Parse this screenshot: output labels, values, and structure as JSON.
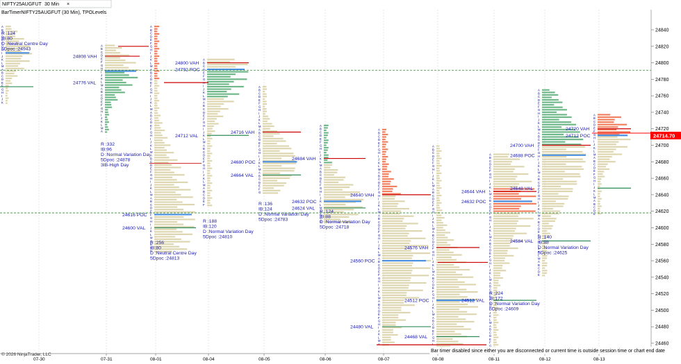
{
  "window": {
    "tab_instrument": "NIFTY25AUGFUT",
    "tab_interval": "30 Min",
    "header_line": "BarTimerNIFTY25AUGFUT (30 Min), TPOLevels",
    "copyright": "© 2026 NinjaTrader, LLC",
    "status_message": "Bar timer disabled since either you are disconnected or current time is outside session time or chart end date"
  },
  "price_axis": {
    "labels": [
      "24840",
      "24820",
      "24800",
      "24780",
      "24760",
      "24740",
      "24720",
      "24700",
      "24680",
      "24660",
      "24640",
      "24620",
      "24600",
      "24580",
      "24560",
      "24540",
      "24520",
      "24500",
      "24480",
      "24460"
    ],
    "current_price": "24714.70",
    "current_price_color": "#ff0000"
  },
  "time_axis": {
    "labels": [
      "07-30",
      "07-31",
      "08-01",
      "08-04",
      "08-05",
      "08-06",
      "08-07",
      "08-08",
      "08-11",
      "08-12",
      "08-13"
    ]
  },
  "colors": {
    "value_area_tan": "#ddd6b0",
    "poc_blue": "#4a90e2",
    "val_green": "#2e8b57",
    "vah_red": "#cc0000",
    "ib_salmon": "#f08060",
    "ib_green": "#6fb88a",
    "text_blue": "#1a1aaa",
    "prev_poc_dash": "#2e8b2e"
  },
  "chart_data": {
    "type": "market_profile",
    "ylim": [
      24450,
      24850
    ],
    "sessions": [
      {
        "date": "07-30",
        "poc": 24812,
        "vah": null,
        "val": null,
        "info": [
          "R :124",
          "IB:80",
          "D :Neutral Centre Day",
          "5Dpoc :24943"
        ]
      },
      {
        "date": "07-31",
        "poc": null,
        "vah": 24808,
        "val": null,
        "info": [
          "R :332",
          "IB:96",
          "D :Normal Variation Day",
          "5Dpoc :24878",
          "3IB-High Day"
        ],
        "labels": [
          "24808 VAH",
          "24776 VAL"
        ]
      },
      {
        "date": "08-01",
        "poc": 24616,
        "vah": null,
        "val": 24600,
        "info": [
          "R :256",
          "IB:80",
          "D :Neutral Centre Day",
          "5Dpoc :24813"
        ],
        "labels": [
          "24616 POC",
          "24600 VAL"
        ]
      },
      {
        "date": "08-04",
        "poc": 24792,
        "vah": 24800,
        "val": 24712,
        "info": [
          "R :188",
          "IB:120",
          "D :Normal Variation Day",
          "5Dpoc :24810"
        ],
        "labels": [
          "24800 VAH",
          "24792 POC",
          "24712 VAL"
        ]
      },
      {
        "date": "08-05",
        "poc": 24680,
        "vah": 24716,
        "val": 24664,
        "info": [
          "R :136",
          "IB:124",
          "D :Normal Variation Day",
          "5Dpoc :24783"
        ],
        "labels": [
          "24716 VAH",
          "24680 POC",
          "24664 VAL"
        ]
      },
      {
        "date": "08-06",
        "poc": 24632,
        "vah": 24684,
        "val": 24624,
        "info": [
          "R :124",
          "IB:88",
          "D :Normal Variation Day",
          "5Dpoc :24718"
        ],
        "labels": [
          "24684 VAH",
          "24632 POC",
          "24624 VAL"
        ]
      },
      {
        "date": "08-07",
        "poc": 24560,
        "vah": 24640,
        "val": 24480,
        "info": [],
        "labels": [
          "24640 VAH",
          "24560 POC",
          "24480 VAL"
        ]
      },
      {
        "date": "08-08",
        "poc": 24512,
        "vah": 24576,
        "val": 24468,
        "info": [],
        "labels": [
          "24576 VAH",
          "24512 POC",
          "24468 VAL"
        ]
      },
      {
        "date": "08-11",
        "poc": 24632,
        "vah": 24644,
        "val": 24512,
        "info": [
          "R :224",
          "IB:172",
          "D :Normal Variation Day",
          "5Dpoc :24609"
        ],
        "labels": [
          "24644 VAH",
          "24632 POC",
          "24512 VAL"
        ]
      },
      {
        "date": "08-12",
        "poc": 24688,
        "vah": 24700,
        "val": 24584,
        "info": [
          "R :140",
          "IB:88",
          "D :Normal Variation Day",
          "5Dpoc :24625"
        ],
        "labels": [
          "24700 VAH",
          "24688 POC",
          "24648 VAL",
          "24584 VAL"
        ]
      },
      {
        "date": "08-13",
        "poc": 24712,
        "vah": 24720,
        "val": 24648,
        "info": [],
        "labels": [
          "24720 VAH",
          "24712 POC"
        ]
      }
    ],
    "reference_lines": [
      {
        "price": 24791,
        "style": "dashed",
        "color": "#2e8b2e"
      },
      {
        "price": 24618,
        "style": "dashed",
        "color": "#2e8b2e"
      }
    ]
  }
}
